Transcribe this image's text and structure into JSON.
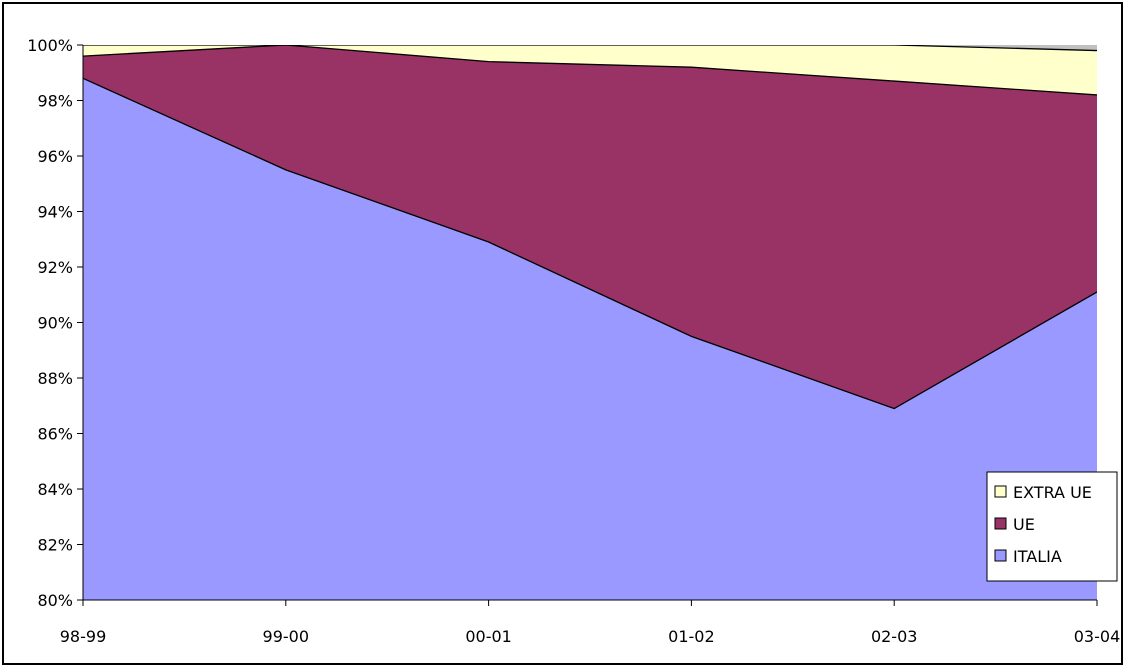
{
  "chart_data": {
    "type": "area",
    "stacked": "percent",
    "x": [
      "98-99",
      "99-00",
      "00-01",
      "01-02",
      "02-03",
      "03-04"
    ],
    "ylim": [
      80,
      100
    ],
    "yticks": [
      80,
      82,
      84,
      86,
      88,
      90,
      92,
      94,
      96,
      98,
      100
    ],
    "ytick_labels": [
      "80%",
      "82%",
      "84%",
      "86%",
      "88%",
      "90%",
      "92%",
      "94%",
      "96%",
      "98%",
      "100%"
    ],
    "series": [
      {
        "name": "ITALIA",
        "values": [
          98.8,
          95.5,
          92.9,
          89.5,
          86.9,
          91.1
        ],
        "color": "#9999ff"
      },
      {
        "name": "UE",
        "values": [
          0.8,
          4.5,
          6.5,
          9.7,
          11.8,
          7.1
        ],
        "color": "#993366"
      },
      {
        "name": "EXTRA UE",
        "values": [
          0.4,
          0.0,
          0.6,
          0.8,
          1.3,
          1.6
        ],
        "color": "#ffffcc"
      },
      {
        "name": "",
        "values": [
          0.0,
          0.0,
          0.0,
          0.0,
          0.0,
          0.2
        ],
        "color": "#c0c0c0"
      }
    ],
    "legend": {
      "position": "bottom-right",
      "entries": [
        "EXTRA UE",
        "UE",
        "ITALIA"
      ]
    },
    "title": "",
    "xlabel": "",
    "ylabel": "",
    "grid": false
  }
}
